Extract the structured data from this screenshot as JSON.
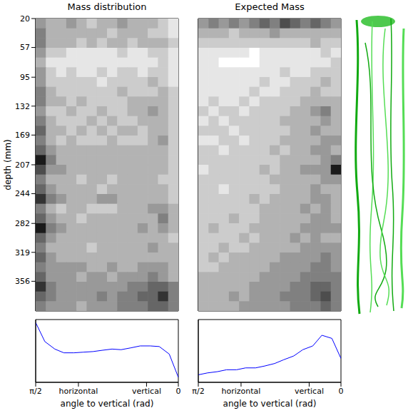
{
  "chart_data": [
    {
      "type": "heatmap",
      "title": "Mass distribution",
      "y_label": "depth (mm)",
      "ylim": [
        20,
        394
      ],
      "yticks": [
        20,
        57,
        95,
        132,
        169,
        207,
        244,
        282,
        319,
        356
      ],
      "tick_labels": "y",
      "color": "#000000",
      "cells": [
        [
          0.4,
          0.3,
          0.3,
          0.4,
          0.3,
          0.2,
          0.3,
          0.3,
          0.4,
          0.3,
          0.3,
          0.3,
          0.2,
          0.1
        ],
        [
          0.5,
          0.3,
          0.3,
          0.3,
          0.3,
          0.3,
          0.3,
          0.2,
          0.3,
          0.3,
          0.3,
          0.2,
          0.2,
          0.1
        ],
        [
          0.5,
          0.3,
          0.3,
          0.3,
          0.2,
          0.3,
          0.2,
          0.3,
          0.3,
          0.2,
          0.3,
          0.3,
          0.3,
          0.2
        ],
        [
          0.4,
          0.2,
          0.2,
          0.1,
          0.1,
          0.1,
          0.1,
          0.1,
          0.2,
          0.1,
          0.1,
          0.2,
          0.2,
          0.1
        ],
        [
          0.3,
          0.1,
          0.1,
          0.1,
          0.1,
          0.1,
          0.1,
          0.1,
          0.1,
          0.1,
          0.1,
          0.1,
          0.2,
          0.1
        ],
        [
          0.4,
          0.2,
          0.1,
          0.2,
          0.1,
          0.1,
          0.2,
          0.1,
          0.2,
          0.2,
          0.1,
          0.2,
          0.2,
          0.1
        ],
        [
          0.4,
          0.2,
          0.2,
          0.2,
          0.2,
          0.2,
          0.1,
          0.2,
          0.2,
          0.2,
          0.2,
          0.3,
          0.2,
          0.1
        ],
        [
          0.5,
          0.3,
          0.2,
          0.2,
          0.2,
          0.2,
          0.2,
          0.2,
          0.3,
          0.2,
          0.2,
          0.2,
          0.3,
          0.2
        ],
        [
          0.5,
          0.3,
          0.3,
          0.2,
          0.3,
          0.2,
          0.2,
          0.2,
          0.2,
          0.3,
          0.3,
          0.3,
          0.3,
          0.2
        ],
        [
          0.4,
          0.2,
          0.2,
          0.3,
          0.2,
          0.2,
          0.3,
          0.2,
          0.2,
          0.3,
          0.3,
          0.4,
          0.3,
          0.2
        ],
        [
          0.5,
          0.3,
          0.2,
          0.2,
          0.2,
          0.3,
          0.2,
          0.3,
          0.2,
          0.2,
          0.3,
          0.3,
          0.3,
          0.2
        ],
        [
          0.6,
          0.3,
          0.3,
          0.2,
          0.3,
          0.2,
          0.3,
          0.2,
          0.3,
          0.3,
          0.2,
          0.3,
          0.3,
          0.2
        ],
        [
          0.5,
          0.3,
          0.2,
          0.3,
          0.2,
          0.2,
          0.2,
          0.3,
          0.2,
          0.2,
          0.2,
          0.3,
          0.4,
          0.2
        ],
        [
          0.6,
          0.4,
          0.3,
          0.3,
          0.3,
          0.3,
          0.3,
          0.3,
          0.3,
          0.3,
          0.3,
          0.3,
          0.3,
          0.2
        ],
        [
          0.9,
          0.5,
          0.3,
          0.3,
          0.3,
          0.3,
          0.3,
          0.3,
          0.3,
          0.3,
          0.3,
          0.3,
          0.3,
          0.2
        ],
        [
          0.7,
          0.4,
          0.4,
          0.3,
          0.3,
          0.3,
          0.3,
          0.3,
          0.3,
          0.3,
          0.3,
          0.3,
          0.3,
          0.2
        ],
        [
          0.5,
          0.3,
          0.3,
          0.3,
          0.2,
          0.3,
          0.3,
          0.2,
          0.3,
          0.3,
          0.3,
          0.3,
          0.2,
          0.2
        ],
        [
          0.6,
          0.4,
          0.3,
          0.3,
          0.3,
          0.3,
          0.2,
          0.3,
          0.3,
          0.3,
          0.3,
          0.3,
          0.3,
          0.2
        ],
        [
          0.8,
          0.5,
          0.4,
          0.3,
          0.3,
          0.3,
          0.4,
          0.4,
          0.3,
          0.3,
          0.3,
          0.3,
          0.3,
          0.2
        ],
        [
          0.5,
          0.3,
          0.2,
          0.3,
          0.3,
          0.2,
          0.2,
          0.2,
          0.3,
          0.3,
          0.3,
          0.4,
          0.4,
          0.3
        ],
        [
          0.6,
          0.4,
          0.3,
          0.3,
          0.2,
          0.3,
          0.3,
          0.3,
          0.3,
          0.3,
          0.3,
          0.3,
          0.5,
          0.3
        ],
        [
          0.9,
          0.5,
          0.4,
          0.3,
          0.3,
          0.3,
          0.3,
          0.3,
          0.3,
          0.3,
          0.4,
          0.3,
          0.4,
          0.3
        ],
        [
          0.6,
          0.4,
          0.3,
          0.3,
          0.3,
          0.3,
          0.3,
          0.3,
          0.3,
          0.3,
          0.3,
          0.3,
          0.3,
          0.2
        ],
        [
          0.5,
          0.3,
          0.3,
          0.3,
          0.3,
          0.2,
          0.3,
          0.3,
          0.3,
          0.3,
          0.3,
          0.4,
          0.3,
          0.3
        ],
        [
          0.6,
          0.4,
          0.3,
          0.3,
          0.3,
          0.3,
          0.3,
          0.3,
          0.3,
          0.3,
          0.3,
          0.3,
          0.3,
          0.3
        ],
        [
          0.5,
          0.4,
          0.4,
          0.4,
          0.4,
          0.3,
          0.3,
          0.4,
          0.3,
          0.3,
          0.4,
          0.4,
          0.4,
          0.3
        ],
        [
          0.6,
          0.4,
          0.4,
          0.4,
          0.3,
          0.4,
          0.4,
          0.3,
          0.4,
          0.4,
          0.4,
          0.5,
          0.4,
          0.3
        ],
        [
          0.8,
          0.5,
          0.4,
          0.4,
          0.4,
          0.4,
          0.4,
          0.4,
          0.4,
          0.5,
          0.5,
          0.6,
          0.6,
          0.5
        ],
        [
          0.6,
          0.5,
          0.4,
          0.4,
          0.4,
          0.4,
          0.5,
          0.4,
          0.5,
          0.5,
          0.6,
          0.6,
          0.8,
          0.5
        ],
        [
          0.5,
          0.4,
          0.4,
          0.4,
          0.3,
          0.4,
          0.4,
          0.4,
          0.5,
          0.5,
          0.5,
          0.6,
          0.6,
          0.5
        ]
      ]
    },
    {
      "type": "line",
      "x_label": "angle to vertical (rad)",
      "xlim": [
        1.5708,
        0
      ],
      "xticks": [
        {
          "value": 1.5708,
          "label": "π/2"
        },
        {
          "value": 1.1,
          "label": "horizontal"
        },
        {
          "value": 0.35,
          "label": "vertical"
        },
        0
      ],
      "ylim": [
        0,
        1
      ],
      "yticks": [
        0,
        0.2,
        0.4,
        0.6,
        0.8,
        1
      ],
      "tick_labels": "x",
      "color": "#0000ff",
      "x": [
        1.57,
        1.47,
        1.36,
        1.26,
        1.15,
        1.05,
        0.94,
        0.84,
        0.73,
        0.63,
        0.52,
        0.42,
        0.31,
        0.21,
        0.1,
        0
      ],
      "values": [
        0.95,
        0.65,
        0.53,
        0.47,
        0.47,
        0.48,
        0.49,
        0.51,
        0.53,
        0.52,
        0.55,
        0.58,
        0.58,
        0.57,
        0.45,
        0.08
      ]
    },
    {
      "type": "heatmap",
      "title": "Expected Mass",
      "ylim": [
        20,
        394
      ],
      "yticks": [
        20,
        57,
        95,
        132,
        169,
        207,
        244,
        282,
        319,
        356
      ],
      "tick_labels": false,
      "color": "#000000",
      "cells": [
        [
          0.4,
          0.5,
          0.4,
          0.5,
          0.4,
          0.5,
          0.6,
          0.5,
          0.7,
          0.6,
          0.5,
          0.6,
          0.5,
          0.4
        ],
        [
          0.3,
          0.3,
          0.3,
          0.2,
          0.3,
          0.3,
          0.3,
          0.4,
          0.3,
          0.3,
          0.3,
          0.3,
          0.3,
          0.3
        ],
        [
          0.2,
          0.2,
          0.2,
          0.2,
          0.2,
          0.2,
          0.2,
          0.2,
          0.2,
          0.2,
          0.2,
          0.3,
          0.2,
          0.2
        ],
        [
          0.1,
          0.1,
          0.1,
          0.1,
          0.1,
          0.0,
          0.1,
          0.1,
          0.1,
          0.1,
          0.1,
          0.1,
          0.2,
          0.1
        ],
        [
          0.1,
          0.1,
          0.0,
          0.0,
          0.0,
          0.0,
          0.1,
          0.1,
          0.1,
          0.1,
          0.1,
          0.1,
          0.1,
          0.2
        ],
        [
          0.1,
          0.1,
          0.1,
          0.1,
          0.1,
          0.1,
          0.1,
          0.1,
          0.2,
          0.1,
          0.1,
          0.2,
          0.2,
          0.2
        ],
        [
          0.1,
          0.1,
          0.1,
          0.1,
          0.1,
          0.1,
          0.2,
          0.1,
          0.1,
          0.2,
          0.2,
          0.2,
          0.3,
          0.2
        ],
        [
          0.1,
          0.1,
          0.1,
          0.1,
          0.1,
          0.2,
          0.1,
          0.1,
          0.2,
          0.2,
          0.2,
          0.3,
          0.2,
          0.2
        ],
        [
          0.1,
          0.2,
          0.1,
          0.1,
          0.2,
          0.1,
          0.2,
          0.2,
          0.2,
          0.2,
          0.3,
          0.3,
          0.3,
          0.3
        ],
        [
          0.2,
          0.1,
          0.2,
          0.2,
          0.1,
          0.2,
          0.2,
          0.2,
          0.2,
          0.3,
          0.3,
          0.4,
          0.5,
          0.3
        ],
        [
          0.1,
          0.2,
          0.1,
          0.2,
          0.2,
          0.2,
          0.2,
          0.2,
          0.3,
          0.3,
          0.3,
          0.3,
          0.4,
          0.3
        ],
        [
          0.2,
          0.2,
          0.2,
          0.1,
          0.2,
          0.2,
          0.2,
          0.2,
          0.2,
          0.3,
          0.3,
          0.4,
          0.3,
          0.3
        ],
        [
          0.1,
          0.1,
          0.2,
          0.2,
          0.1,
          0.2,
          0.2,
          0.2,
          0.3,
          0.3,
          0.3,
          0.3,
          0.4,
          0.4
        ],
        [
          0.2,
          0.2,
          0.1,
          0.2,
          0.2,
          0.2,
          0.2,
          0.3,
          0.2,
          0.3,
          0.3,
          0.4,
          0.4,
          0.3
        ],
        [
          0.2,
          0.2,
          0.2,
          0.2,
          0.2,
          0.2,
          0.2,
          0.2,
          0.3,
          0.3,
          0.3,
          0.3,
          0.4,
          0.5
        ],
        [
          0.1,
          0.2,
          0.2,
          0.2,
          0.2,
          0.2,
          0.3,
          0.2,
          0.3,
          0.3,
          0.4,
          0.4,
          0.4,
          0.9
        ],
        [
          0.2,
          0.2,
          0.2,
          0.2,
          0.2,
          0.2,
          0.2,
          0.3,
          0.3,
          0.3,
          0.3,
          0.3,
          0.4,
          0.4
        ],
        [
          0.2,
          0.2,
          0.1,
          0.2,
          0.2,
          0.2,
          0.2,
          0.2,
          0.3,
          0.3,
          0.3,
          0.4,
          0.3,
          0.3
        ],
        [
          0.2,
          0.2,
          0.2,
          0.2,
          0.2,
          0.3,
          0.2,
          0.3,
          0.3,
          0.3,
          0.3,
          0.4,
          0.4,
          0.3
        ],
        [
          0.2,
          0.2,
          0.2,
          0.2,
          0.2,
          0.2,
          0.3,
          0.3,
          0.3,
          0.3,
          0.4,
          0.3,
          0.4,
          0.3
        ],
        [
          0.2,
          0.2,
          0.2,
          0.3,
          0.2,
          0.2,
          0.3,
          0.3,
          0.3,
          0.3,
          0.3,
          0.4,
          0.4,
          0.3
        ],
        [
          0.2,
          0.3,
          0.2,
          0.2,
          0.2,
          0.3,
          0.3,
          0.3,
          0.3,
          0.3,
          0.4,
          0.4,
          0.4,
          0.4
        ],
        [
          0.2,
          0.2,
          0.2,
          0.2,
          0.3,
          0.2,
          0.3,
          0.3,
          0.3,
          0.4,
          0.3,
          0.4,
          0.3,
          0.3
        ],
        [
          0.2,
          0.2,
          0.3,
          0.2,
          0.2,
          0.3,
          0.3,
          0.3,
          0.3,
          0.3,
          0.4,
          0.4,
          0.4,
          0.4
        ],
        [
          0.2,
          0.3,
          0.2,
          0.3,
          0.3,
          0.3,
          0.3,
          0.3,
          0.4,
          0.4,
          0.4,
          0.4,
          0.5,
          0.4
        ],
        [
          0.2,
          0.2,
          0.3,
          0.3,
          0.3,
          0.3,
          0.3,
          0.4,
          0.4,
          0.4,
          0.4,
          0.5,
          0.5,
          0.4
        ],
        [
          0.3,
          0.3,
          0.3,
          0.3,
          0.3,
          0.3,
          0.4,
          0.4,
          0.4,
          0.4,
          0.5,
          0.5,
          0.5,
          0.5
        ],
        [
          0.3,
          0.3,
          0.3,
          0.3,
          0.3,
          0.4,
          0.4,
          0.4,
          0.4,
          0.5,
          0.5,
          0.6,
          0.6,
          0.5
        ],
        [
          0.3,
          0.3,
          0.3,
          0.4,
          0.3,
          0.4,
          0.4,
          0.4,
          0.5,
          0.5,
          0.5,
          0.6,
          0.7,
          0.5
        ],
        [
          0.3,
          0.3,
          0.3,
          0.3,
          0.4,
          0.4,
          0.4,
          0.4,
          0.4,
          0.5,
          0.5,
          0.5,
          0.6,
          0.5
        ]
      ]
    },
    {
      "type": "line",
      "x_label": "angle to vertical (rad)",
      "xlim": [
        1.5708,
        0
      ],
      "xticks": [
        {
          "value": 1.5708,
          "label": "π/2"
        },
        {
          "value": 1.1,
          "label": "horizontal"
        },
        {
          "value": 0.35,
          "label": "vertical"
        },
        0
      ],
      "ylim": [
        0,
        1
      ],
      "yticks": [
        0,
        0.2,
        0.4,
        0.6,
        0.8,
        1
      ],
      "tick_labels": "x",
      "color": "#0000ff",
      "x": [
        1.57,
        1.47,
        1.36,
        1.26,
        1.15,
        1.05,
        0.94,
        0.84,
        0.73,
        0.63,
        0.52,
        0.42,
        0.31,
        0.21,
        0.1,
        0
      ],
      "values": [
        0.12,
        0.15,
        0.17,
        0.2,
        0.2,
        0.23,
        0.23,
        0.26,
        0.3,
        0.36,
        0.42,
        0.52,
        0.58,
        0.75,
        0.7,
        0.38
      ]
    }
  ]
}
